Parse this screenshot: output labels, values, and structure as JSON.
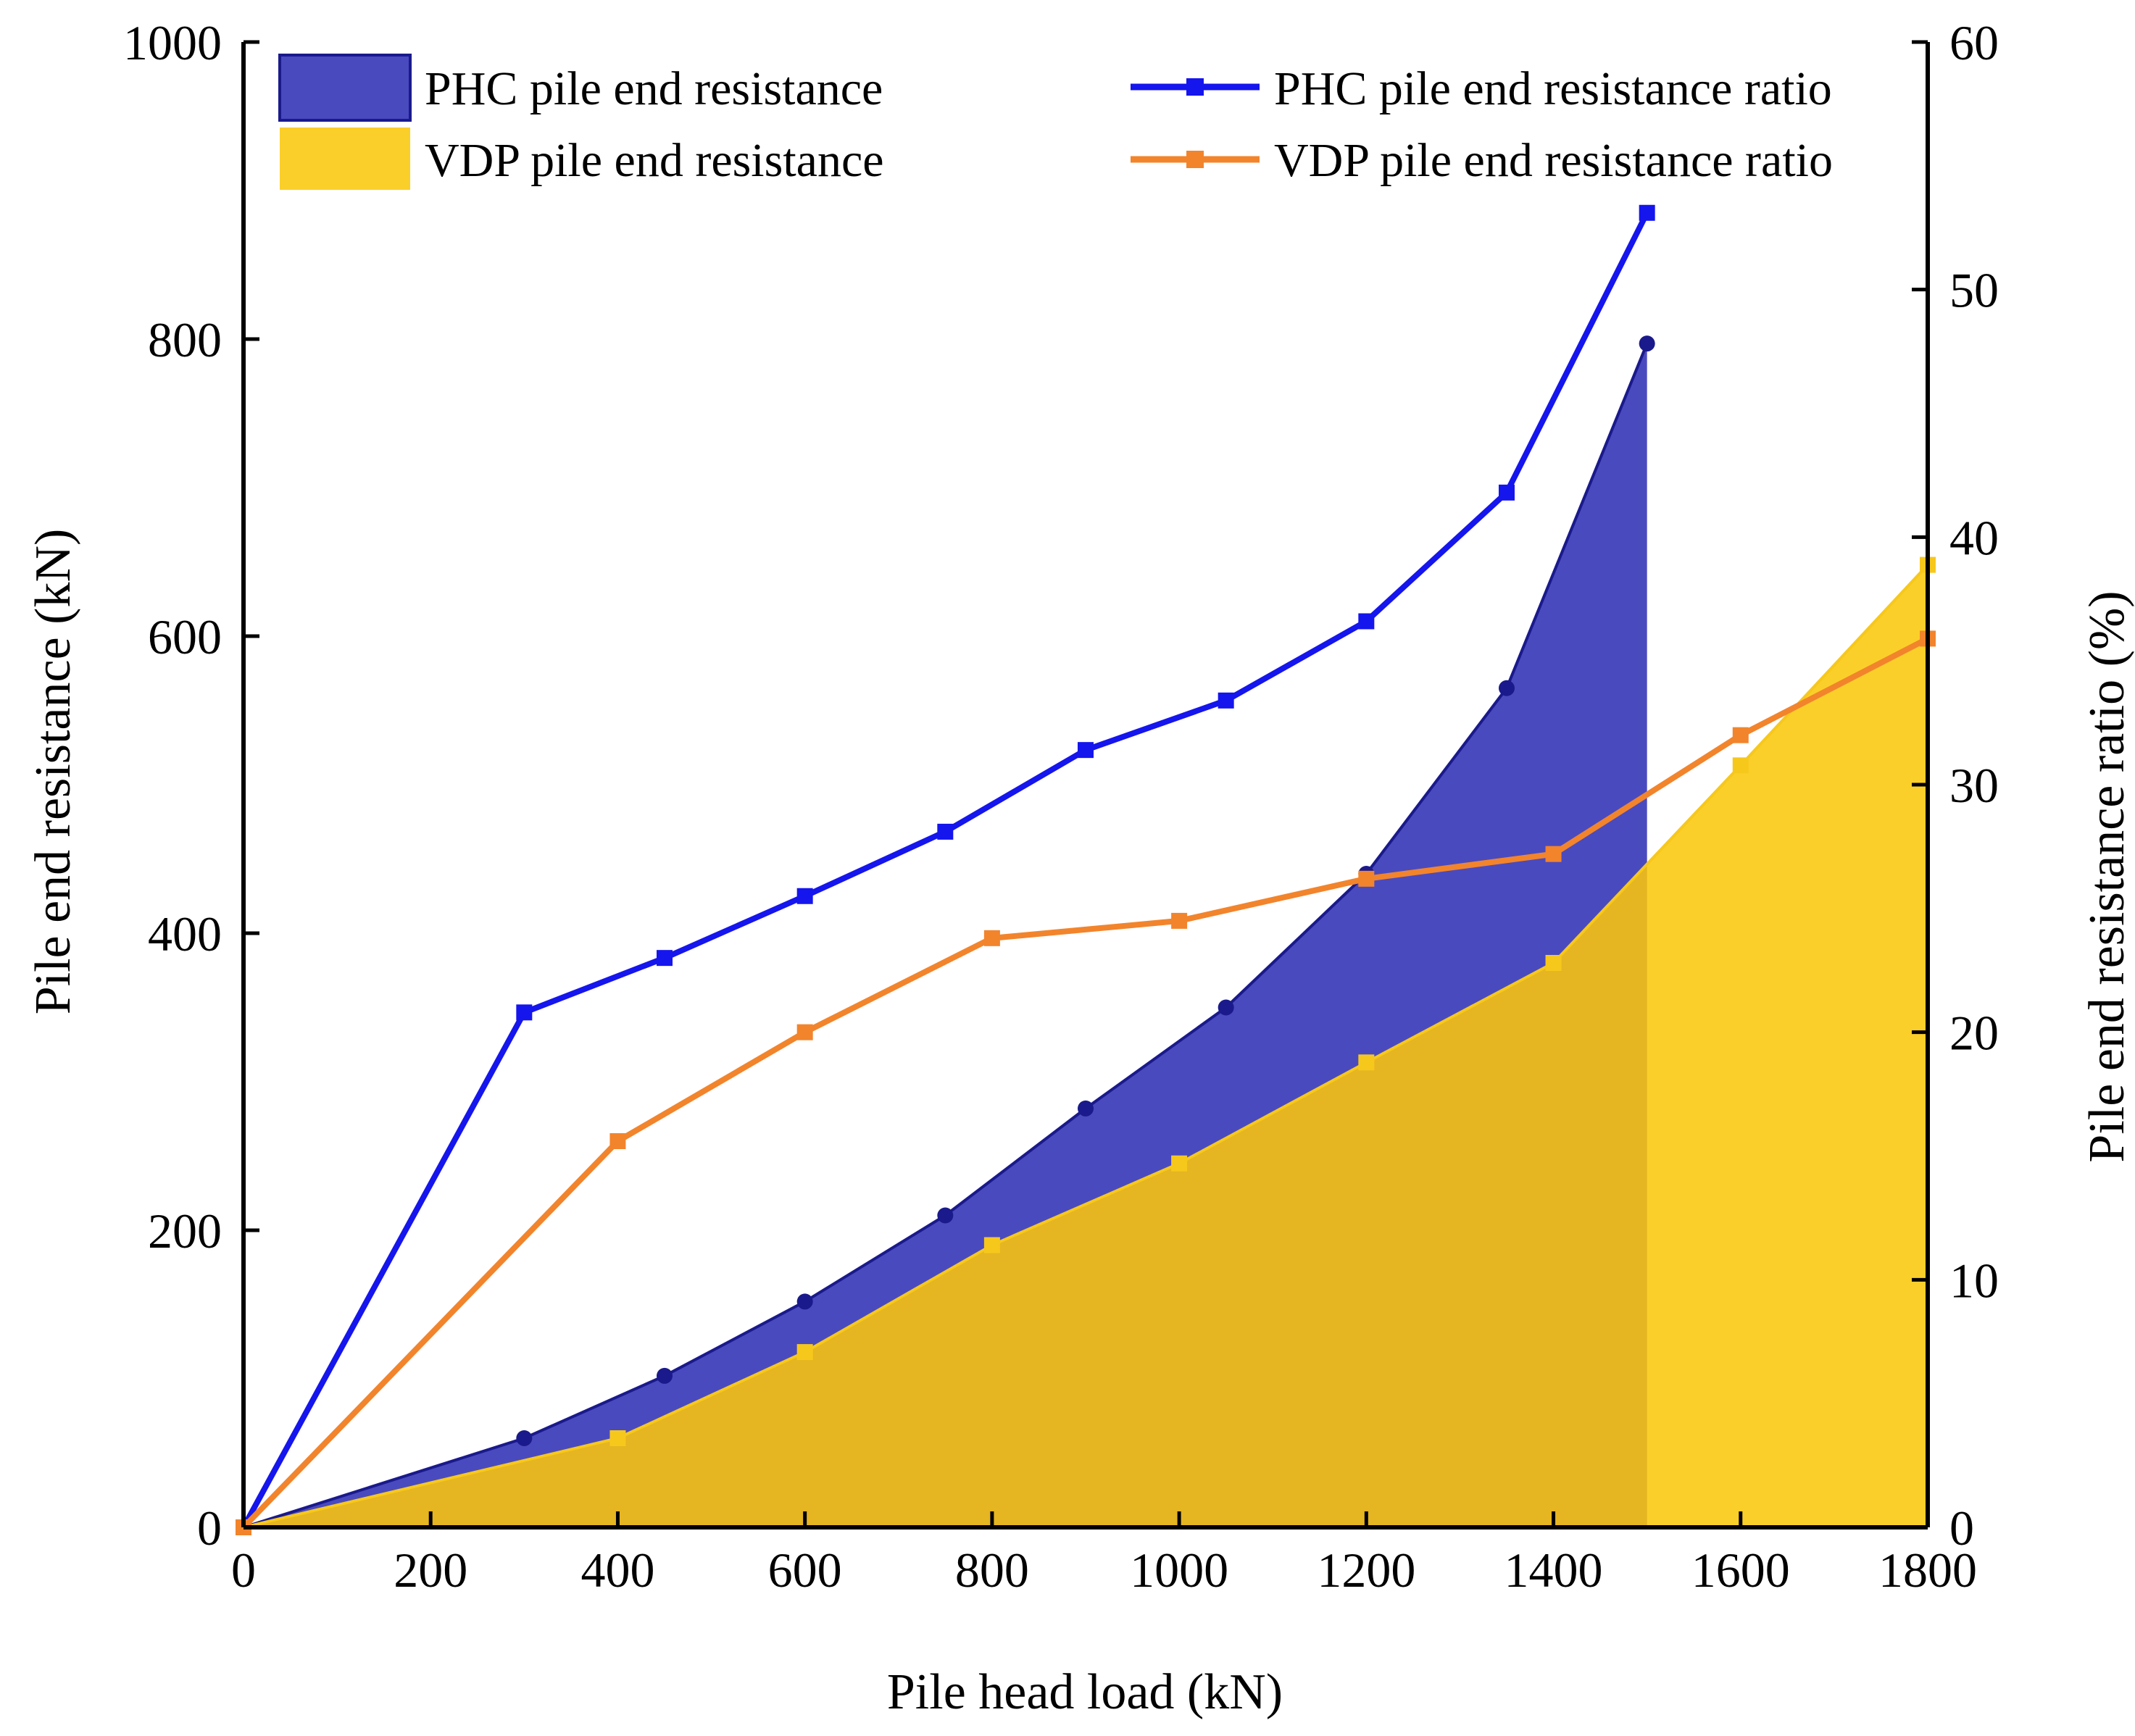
{
  "chart_data": {
    "type": "area",
    "xlabel": "Pile head load (kN)",
    "ylabel": "Pile end resistance  (kN)",
    "y2label": "Pile end resistance ratio (%)",
    "xlim": [
      0,
      1800
    ],
    "ylim": [
      0,
      1000
    ],
    "y2lim": [
      0,
      60
    ],
    "xticks": [
      "0",
      "200",
      "400",
      "600",
      "800",
      "1000",
      "1200",
      "1400",
      "1600",
      "1800"
    ],
    "yticks": [
      "0",
      "200",
      "400",
      "600",
      "800",
      "1000"
    ],
    "y2ticks": [
      "0",
      "10",
      "20",
      "30",
      "40",
      "50",
      "60"
    ],
    "grid": false,
    "legend_position": "top",
    "colors": {
      "phc_area": "#4a4abf",
      "phc_area_edge": "#1a1a8c",
      "phc_marker": "#1a1a8c",
      "vdp_area": "#fbcf2a",
      "vdp_area_overlap": "#e5b522",
      "vdp_marker": "#f7c81c",
      "phc_ratio_line": "#1515ee",
      "vdp_ratio_line": "#f2842c"
    },
    "series": [
      {
        "name": "PHC pile end resistance",
        "kind": "area",
        "axis": "left",
        "x": [
          0,
          300,
          450,
          600,
          750,
          900,
          1050,
          1200,
          1350,
          1500
        ],
        "values": [
          0,
          60,
          102,
          152,
          210,
          282,
          350,
          440,
          565,
          797
        ]
      },
      {
        "name": "VDP pile end resistance",
        "kind": "area",
        "axis": "left",
        "x": [
          0,
          400,
          600,
          800,
          1000,
          1200,
          1400,
          1600,
          1800
        ],
        "values": [
          0,
          60,
          118,
          190,
          245,
          313,
          380,
          513,
          648
        ]
      },
      {
        "name": "PHC pile end resistance ratio",
        "kind": "line",
        "axis": "right",
        "x": [
          0,
          300,
          450,
          600,
          750,
          900,
          1050,
          1200,
          1350,
          1500
        ],
        "values": [
          0,
          20.8,
          23.0,
          25.5,
          28.1,
          31.4,
          33.4,
          36.6,
          41.8,
          53.1
        ]
      },
      {
        "name": "VDP pile end resistance ratio",
        "kind": "line",
        "axis": "right",
        "x": [
          0,
          400,
          600,
          800,
          1000,
          1200,
          1400,
          1600,
          1800
        ],
        "values": [
          0,
          15.6,
          20.0,
          23.8,
          24.5,
          26.2,
          27.2,
          32.0,
          35.9
        ]
      }
    ]
  }
}
